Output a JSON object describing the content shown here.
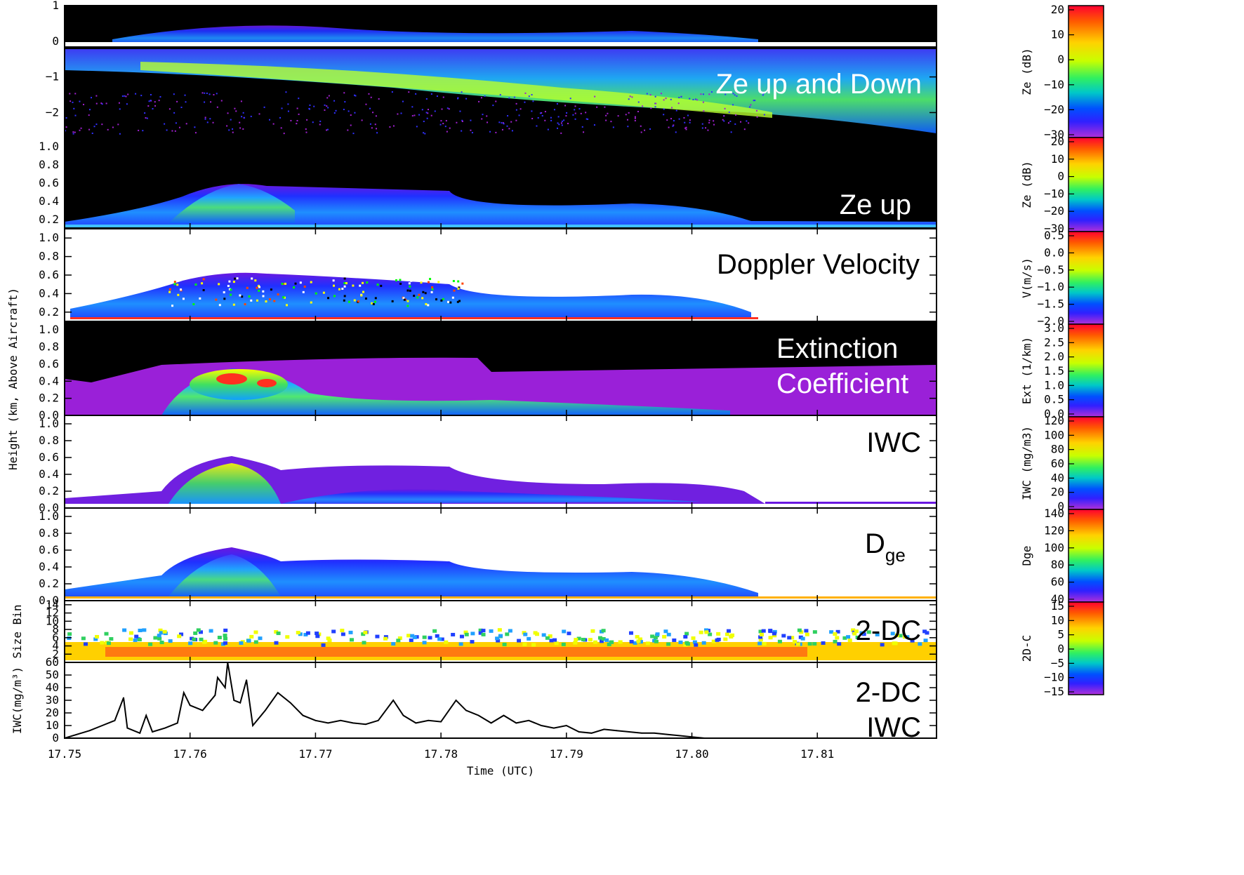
{
  "chart_data": [
    {
      "type": "heatmap",
      "overlay_label": "Ze up and Down",
      "y_ticks": [
        "1",
        "0",
        "−1",
        "−2"
      ],
      "ylim": [
        -2.7,
        1
      ],
      "colorbar": {
        "label": "Ze (dB)",
        "ticks": [
          "20",
          "10",
          "0",
          "−10",
          "−20",
          "−30"
        ]
      }
    },
    {
      "type": "heatmap",
      "overlay_label": "Ze up",
      "y_ticks": [
        "1.0",
        "0.8",
        "0.6",
        "0.4",
        "0.2"
      ],
      "ylim": [
        0.1,
        1.1
      ],
      "colorbar": {
        "label": "Ze (dB)",
        "ticks": [
          "20",
          "10",
          "0",
          "−10",
          "−20",
          "−30"
        ]
      }
    },
    {
      "type": "heatmap",
      "overlay_label": "Doppler Velocity",
      "y_ticks": [
        "1.0",
        "0.8",
        "0.6",
        "0.4",
        "0.2"
      ],
      "ylim": [
        0.1,
        1.1
      ],
      "colorbar": {
        "label": "V(m/s)",
        "ticks": [
          "0.5",
          "0.0",
          "−0.5",
          "−1.0",
          "−1.5",
          "−2.0"
        ]
      }
    },
    {
      "type": "heatmap",
      "overlay_label": "Extinction Coefficient",
      "overlay_lines": [
        "Extinction",
        "Coefficient"
      ],
      "y_ticks": [
        "1.0",
        "0.8",
        "0.6",
        "0.4",
        "0.2",
        "0.0"
      ],
      "ylim": [
        0,
        1.1
      ],
      "colorbar": {
        "label": "Ext (1/km)",
        "ticks": [
          "3.0",
          "2.5",
          "2.0",
          "1.5",
          "1.0",
          "0.5",
          "0.0"
        ]
      }
    },
    {
      "type": "heatmap",
      "overlay_label": "IWC",
      "y_ticks": [
        "1.0",
        "0.8",
        "0.6",
        "0.4",
        "0.2",
        "0.0"
      ],
      "ylim": [
        0,
        1.1
      ],
      "colorbar": {
        "label": "IWC (mg/m3)",
        "ticks": [
          "120",
          "100",
          "80",
          "60",
          "40",
          "20",
          "0"
        ]
      }
    },
    {
      "type": "heatmap",
      "overlay_label": "D",
      "overlay_sub": "ge",
      "y_ticks": [
        "1.0",
        "0.8",
        "0.6",
        "0.4",
        "0.2",
        "0.0"
      ],
      "ylim": [
        0,
        1.1
      ],
      "colorbar": {
        "label": "Dge",
        "ticks": [
          "140",
          "120",
          "100",
          "80",
          "60",
          "40"
        ]
      }
    },
    {
      "type": "heatmap",
      "overlay_label": "2-DC",
      "y_ticks": [
        "14",
        "12",
        "10",
        "8",
        "6",
        "4",
        "2"
      ],
      "ylim": [
        0,
        15
      ],
      "ylabel": "Size Bin",
      "colorbar": {
        "label": "2D-C",
        "ticks": [
          "15",
          "10",
          "5",
          "0",
          "−5",
          "−10",
          "−15"
        ]
      }
    },
    {
      "type": "line",
      "overlay_label": "2-DC IWC",
      "overlay_lines": [
        "2-DC",
        "IWC"
      ],
      "ylabel": "IWC(mg/m³)",
      "y_ticks": [
        "60",
        "50",
        "40",
        "30",
        "20",
        "10",
        "0"
      ],
      "ylim": [
        0,
        60
      ],
      "x": [
        17.75,
        17.751,
        17.752,
        17.753,
        17.754,
        17.7547,
        17.755,
        17.756,
        17.7565,
        17.757,
        17.758,
        17.759,
        17.7595,
        17.76,
        17.761,
        17.762,
        17.7622,
        17.7628,
        17.763,
        17.7635,
        17.764,
        17.7645,
        17.765,
        17.766,
        17.767,
        17.768,
        17.769,
        17.77,
        17.771,
        17.772,
        17.773,
        17.774,
        17.775,
        17.7762,
        17.777,
        17.778,
        17.779,
        17.78,
        17.7812,
        17.782,
        17.783,
        17.784,
        17.785,
        17.786,
        17.787,
        17.788,
        17.789,
        17.79,
        17.791,
        17.792,
        17.793,
        17.794,
        17.795,
        17.796,
        17.797,
        17.798,
        17.799,
        17.8,
        17.801
      ],
      "values": [
        0,
        3,
        6,
        10,
        14,
        32,
        8,
        4,
        18,
        5,
        8,
        12,
        36,
        26,
        22,
        34,
        48,
        40,
        60,
        30,
        28,
        46,
        10,
        22,
        36,
        28,
        18,
        14,
        12,
        14,
        12,
        11,
        14,
        30,
        18,
        12,
        14,
        13,
        30,
        22,
        18,
        12,
        18,
        12,
        14,
        10,
        8,
        10,
        5,
        4,
        7,
        6,
        5,
        4,
        4,
        3,
        2,
        1,
        0
      ]
    }
  ],
  "x_axis": {
    "label": "Time (UTC)",
    "ticks": [
      "17.75",
      "17.76",
      "17.77",
      "17.78",
      "17.79",
      "17.80",
      "17.81"
    ],
    "tick_values": [
      17.75,
      17.76,
      17.77,
      17.78,
      17.79,
      17.8,
      17.81
    ],
    "xlim": [
      17.75,
      17.8195
    ]
  },
  "shared_ylabel": "Height (km, Above Aircraft)",
  "colors": {
    "panel_bg_dark": "#000000",
    "panel_bg_light": "#ffffff",
    "overlay_text_light": "#ffffff",
    "overlay_text_dark": "#000000",
    "rainbow": [
      "#ff0030",
      "#ff5a00",
      "#ffd200",
      "#f4ff00",
      "#70ff20",
      "#00d8b0",
      "#0060ff",
      "#2020ff",
      "#6a18e0",
      "#c030d0"
    ]
  }
}
